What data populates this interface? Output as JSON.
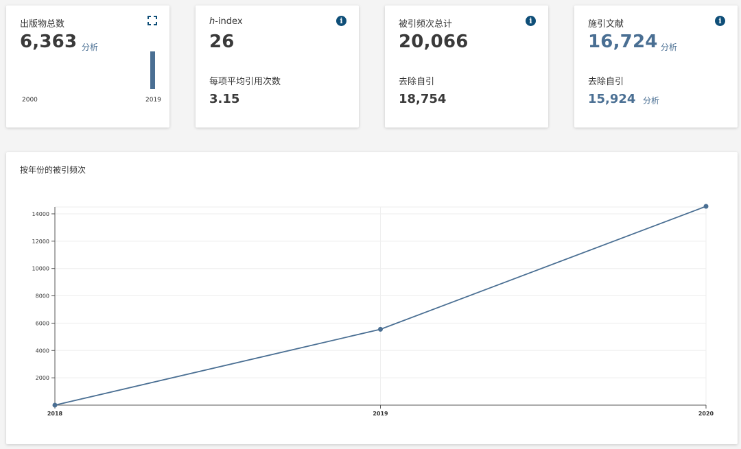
{
  "cards": {
    "publications": {
      "title": "出版物总数",
      "value": "6,363",
      "analysis_label": "分析",
      "year_start": "2000",
      "year_end": "2019"
    },
    "hindex": {
      "title_italic": "h",
      "title_rest": "-index",
      "value": "26",
      "sub_label": "每项平均引用次数",
      "sub_value": "3.15"
    },
    "citations": {
      "title": "被引频次总计",
      "value": "20,066",
      "sub_label": "去除自引",
      "sub_value": "18,754"
    },
    "citing": {
      "title": "施引文献",
      "value": "16,724",
      "analysis_label": "分析",
      "sub_label": "去除自引",
      "sub_value": "15,924",
      "sub_analysis_label": "分析"
    }
  },
  "chart_section": {
    "title": "按年份的被引频次"
  },
  "colors": {
    "accent": "#4a6f93",
    "info_icon": "#0e4e78"
  },
  "icons": [
    "expand-icon",
    "info-icon"
  ],
  "chart_data": {
    "type": "line",
    "title": "按年份的被引频次",
    "x": [
      "2018",
      "2019",
      "2020"
    ],
    "values": [
      0,
      5550,
      14550
    ],
    "ylim": [
      0,
      14500
    ],
    "yticks": [
      2000,
      4000,
      6000,
      8000,
      10000,
      12000,
      14000
    ],
    "grid": true,
    "xlabel": "",
    "ylabel": ""
  }
}
